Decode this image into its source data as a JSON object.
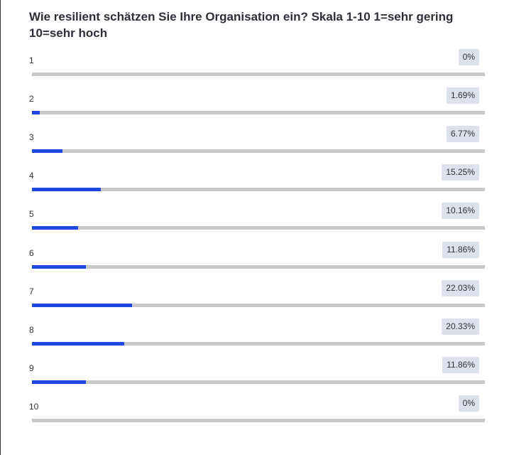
{
  "chart_data": {
    "type": "bar",
    "orientation": "horizontal",
    "title": "Wie resilient schätzen Sie Ihre Organisation ein? Skala 1-10 1=sehr gering 10=sehr hoch",
    "categories": [
      "1",
      "2",
      "3",
      "4",
      "5",
      "6",
      "7",
      "8",
      "9",
      "10"
    ],
    "values": [
      0,
      1.69,
      6.77,
      15.25,
      10.16,
      11.86,
      22.03,
      20.33,
      11.86,
      0
    ],
    "value_labels": [
      "0%",
      "1.69%",
      "6.77%",
      "15.25%",
      "10.16%",
      "11.86%",
      "22.03%",
      "20.33%",
      "11.86%",
      "0%"
    ],
    "xlim": [
      0,
      100
    ],
    "grid": false
  },
  "colors": {
    "bar_fill": "#2046e0",
    "track": "#c9c9c9",
    "badge": "#dde1ec"
  }
}
